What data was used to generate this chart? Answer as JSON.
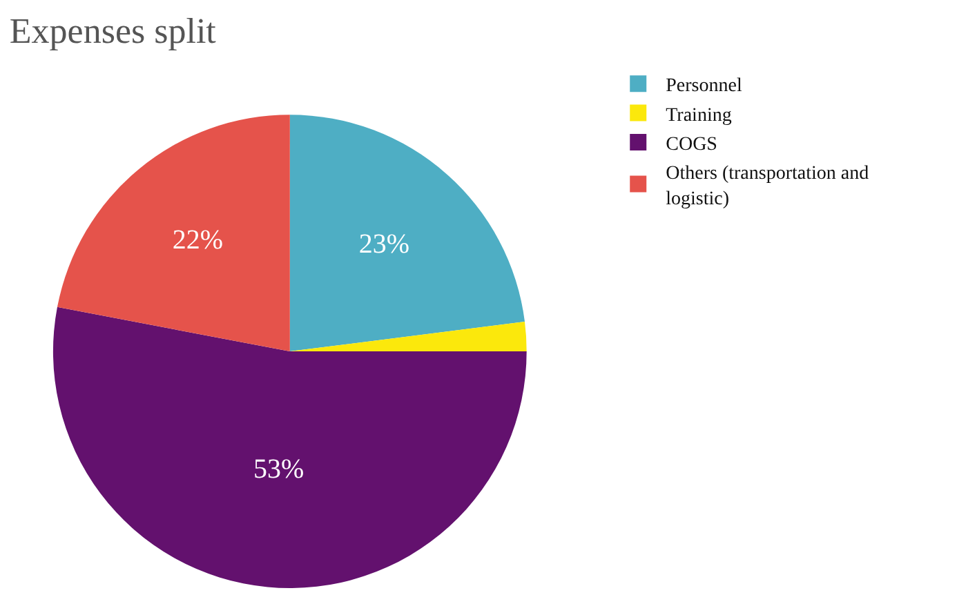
{
  "chart_data": {
    "type": "pie",
    "title": "Expenses split",
    "categories": [
      "Personnel",
      "Training",
      "COGS",
      "Others (transportation and logistic)"
    ],
    "values": [
      23,
      2,
      53,
      22
    ],
    "colors": [
      "#4eaec4",
      "#fbe80c",
      "#63116e",
      "#e5534b"
    ],
    "value_labels": [
      "23%",
      null,
      "53%",
      "22%"
    ],
    "legend": "top right"
  }
}
